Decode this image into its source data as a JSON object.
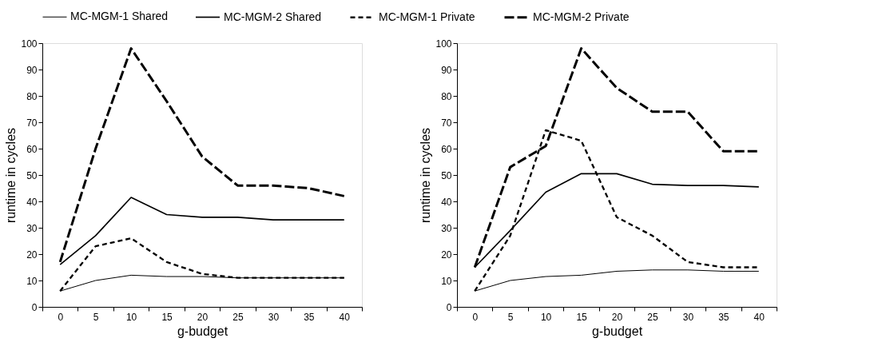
{
  "chart_data": [
    {
      "type": "line",
      "xlabel": "g-budget",
      "ylabel": "runtime in cycles",
      "categories": [
        "0",
        "5",
        "10",
        "15",
        "20",
        "25",
        "30",
        "35",
        "40"
      ],
      "ylim": [
        0,
        100
      ],
      "yticks": [
        0,
        10,
        20,
        30,
        40,
        50,
        60,
        70,
        80,
        90,
        100
      ],
      "grid": false,
      "legend": "top",
      "marker": "none",
      "series": [
        {
          "name": "MC-MGM-1 Shared",
          "color": "#000000",
          "line_style": "solid",
          "values": [
            6,
            10,
            12,
            11.5,
            11.5,
            11,
            11,
            11,
            11
          ]
        },
        {
          "name": "MC-MGM-2 Shared",
          "color": "#000000",
          "line_style": "solid",
          "values": [
            16,
            27,
            41.5,
            35,
            34,
            34,
            33,
            33,
            33
          ]
        },
        {
          "name": "MC-MGM-1 Private",
          "color": "#000000",
          "line_style": "dashed",
          "values": [
            6,
            23,
            26,
            17,
            12.5,
            11,
            11,
            11,
            11
          ]
        },
        {
          "name": "MC-MGM-2 Private",
          "color": "#000000",
          "line_style": "dashed",
          "values": [
            17,
            60,
            98,
            78,
            57,
            46,
            46,
            45,
            42
          ]
        }
      ]
    },
    {
      "type": "line",
      "xlabel": "g-budget",
      "ylabel": "runtime in cycles",
      "categories": [
        "0",
        "5",
        "10",
        "15",
        "20",
        "25",
        "30",
        "35",
        "40"
      ],
      "ylim": [
        0,
        100
      ],
      "yticks": [
        0,
        10,
        20,
        30,
        40,
        50,
        60,
        70,
        80,
        90,
        100
      ],
      "grid": false,
      "marker": "none",
      "series": [
        {
          "name": "MC-MGM-1 Shared",
          "color": "#000000",
          "line_style": "solid",
          "values": [
            6,
            10,
            11.5,
            12,
            13.5,
            14,
            14,
            13.5,
            13.5
          ]
        },
        {
          "name": "MC-MGM-2 Shared",
          "color": "#000000",
          "line_style": "solid",
          "values": [
            15,
            29,
            43.5,
            50.5,
            50.5,
            46.5,
            46,
            46,
            45.5
          ]
        },
        {
          "name": "MC-MGM-1 Private",
          "color": "#000000",
          "line_style": "dashed",
          "values": [
            6,
            27,
            67,
            63,
            34,
            27,
            17,
            15,
            15
          ]
        },
        {
          "name": "MC-MGM-2 Private",
          "color": "#000000",
          "line_style": "dashed",
          "values": [
            15,
            53,
            61,
            98,
            83,
            74,
            74,
            59,
            59
          ]
        }
      ]
    }
  ]
}
